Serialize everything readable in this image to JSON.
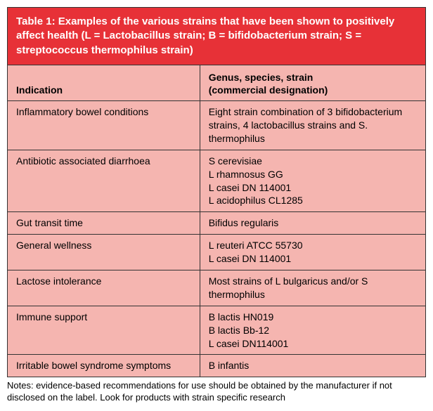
{
  "table": {
    "type": "table",
    "title": "Table 1: Examples of the various strains that have been shown to positively affect health (L = Lactobacillus strain; B = bifidobacterium strain; S = streptococcus thermophilus strain)",
    "title_bg": "#e73137",
    "title_color": "#ffffff",
    "title_fontsize": 15,
    "title_fontweight": "bold",
    "header_bg": "#f5b5b0",
    "header_fontsize": 14,
    "header_fontweight": "bold",
    "body_bg": "#f5b5b0",
    "body_fontsize": 14,
    "border_color": "#333333",
    "columns": [
      {
        "label": "Indication",
        "width": "46%"
      },
      {
        "label": "Genus, species, strain\n(commercial designation)",
        "width": "54%"
      }
    ],
    "rows": [
      {
        "indication": "Inflammatory bowel conditions",
        "genus": "Eight strain combination of 3 bifidobacterium strains, 4 lactobacillus strains and S. thermophilus"
      },
      {
        "indication": "Antibiotic associated diarrhoea",
        "genus": "S cerevisiae\nL rhamnosus GG\nL casei DN 114001\nL acidophilus CL1285"
      },
      {
        "indication": "Gut transit time",
        "genus": "Bifidus regularis"
      },
      {
        "indication": "General wellness",
        "genus": "L reuteri ATCC 55730\nL casei DN 114001"
      },
      {
        "indication": "Lactose intolerance",
        "genus": "Most strains of L bulgaricus and/or S thermophilus"
      },
      {
        "indication": "Immune support",
        "genus": "B lactis HN019\nB lactis Bb-12\nL casei DN114001"
      },
      {
        "indication": "Irritable bowel syndrome symptoms",
        "genus": "B infantis"
      }
    ]
  },
  "notes": "Notes: evidence-based recommendations for use should be obtained by the manufacturer if not disclosed on the label. Look for products with strain specific research"
}
